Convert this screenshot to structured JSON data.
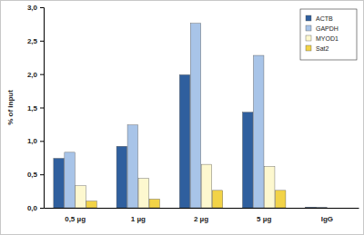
{
  "chart_data": {
    "type": "bar",
    "y_label": "% of input",
    "categories": [
      "0,5 µg",
      "1 µg",
      "2 µg",
      "5 µg",
      "IgG"
    ],
    "series": [
      {
        "name": "ACTB",
        "color": "#2f5f9e",
        "values": [
          0.74,
          0.92,
          1.99,
          1.43,
          0.01
        ]
      },
      {
        "name": "GAPDH",
        "color": "#a8c4e8",
        "values": [
          0.83,
          1.24,
          2.76,
          2.28,
          0.01
        ]
      },
      {
        "name": "MYOD1",
        "color": "#fdf8cf",
        "values": [
          0.33,
          0.44,
          0.65,
          0.62,
          0.0
        ]
      },
      {
        "name": "Sat2",
        "color": "#f2d347",
        "values": [
          0.1,
          0.13,
          0.26,
          0.26,
          0.0
        ]
      }
    ],
    "ylim": [
      0,
      3
    ],
    "yticks": [
      {
        "value": 0,
        "label": "0,0"
      },
      {
        "value": 0.5,
        "label": "0,5"
      },
      {
        "value": 1,
        "label": "1,0"
      },
      {
        "value": 1.5,
        "label": "1,5"
      },
      {
        "value": 2,
        "label": "2,0"
      },
      {
        "value": 2.5,
        "label": "2,5"
      },
      {
        "value": 3,
        "label": "3,0"
      }
    ],
    "grid": false,
    "legend": "top-right"
  }
}
